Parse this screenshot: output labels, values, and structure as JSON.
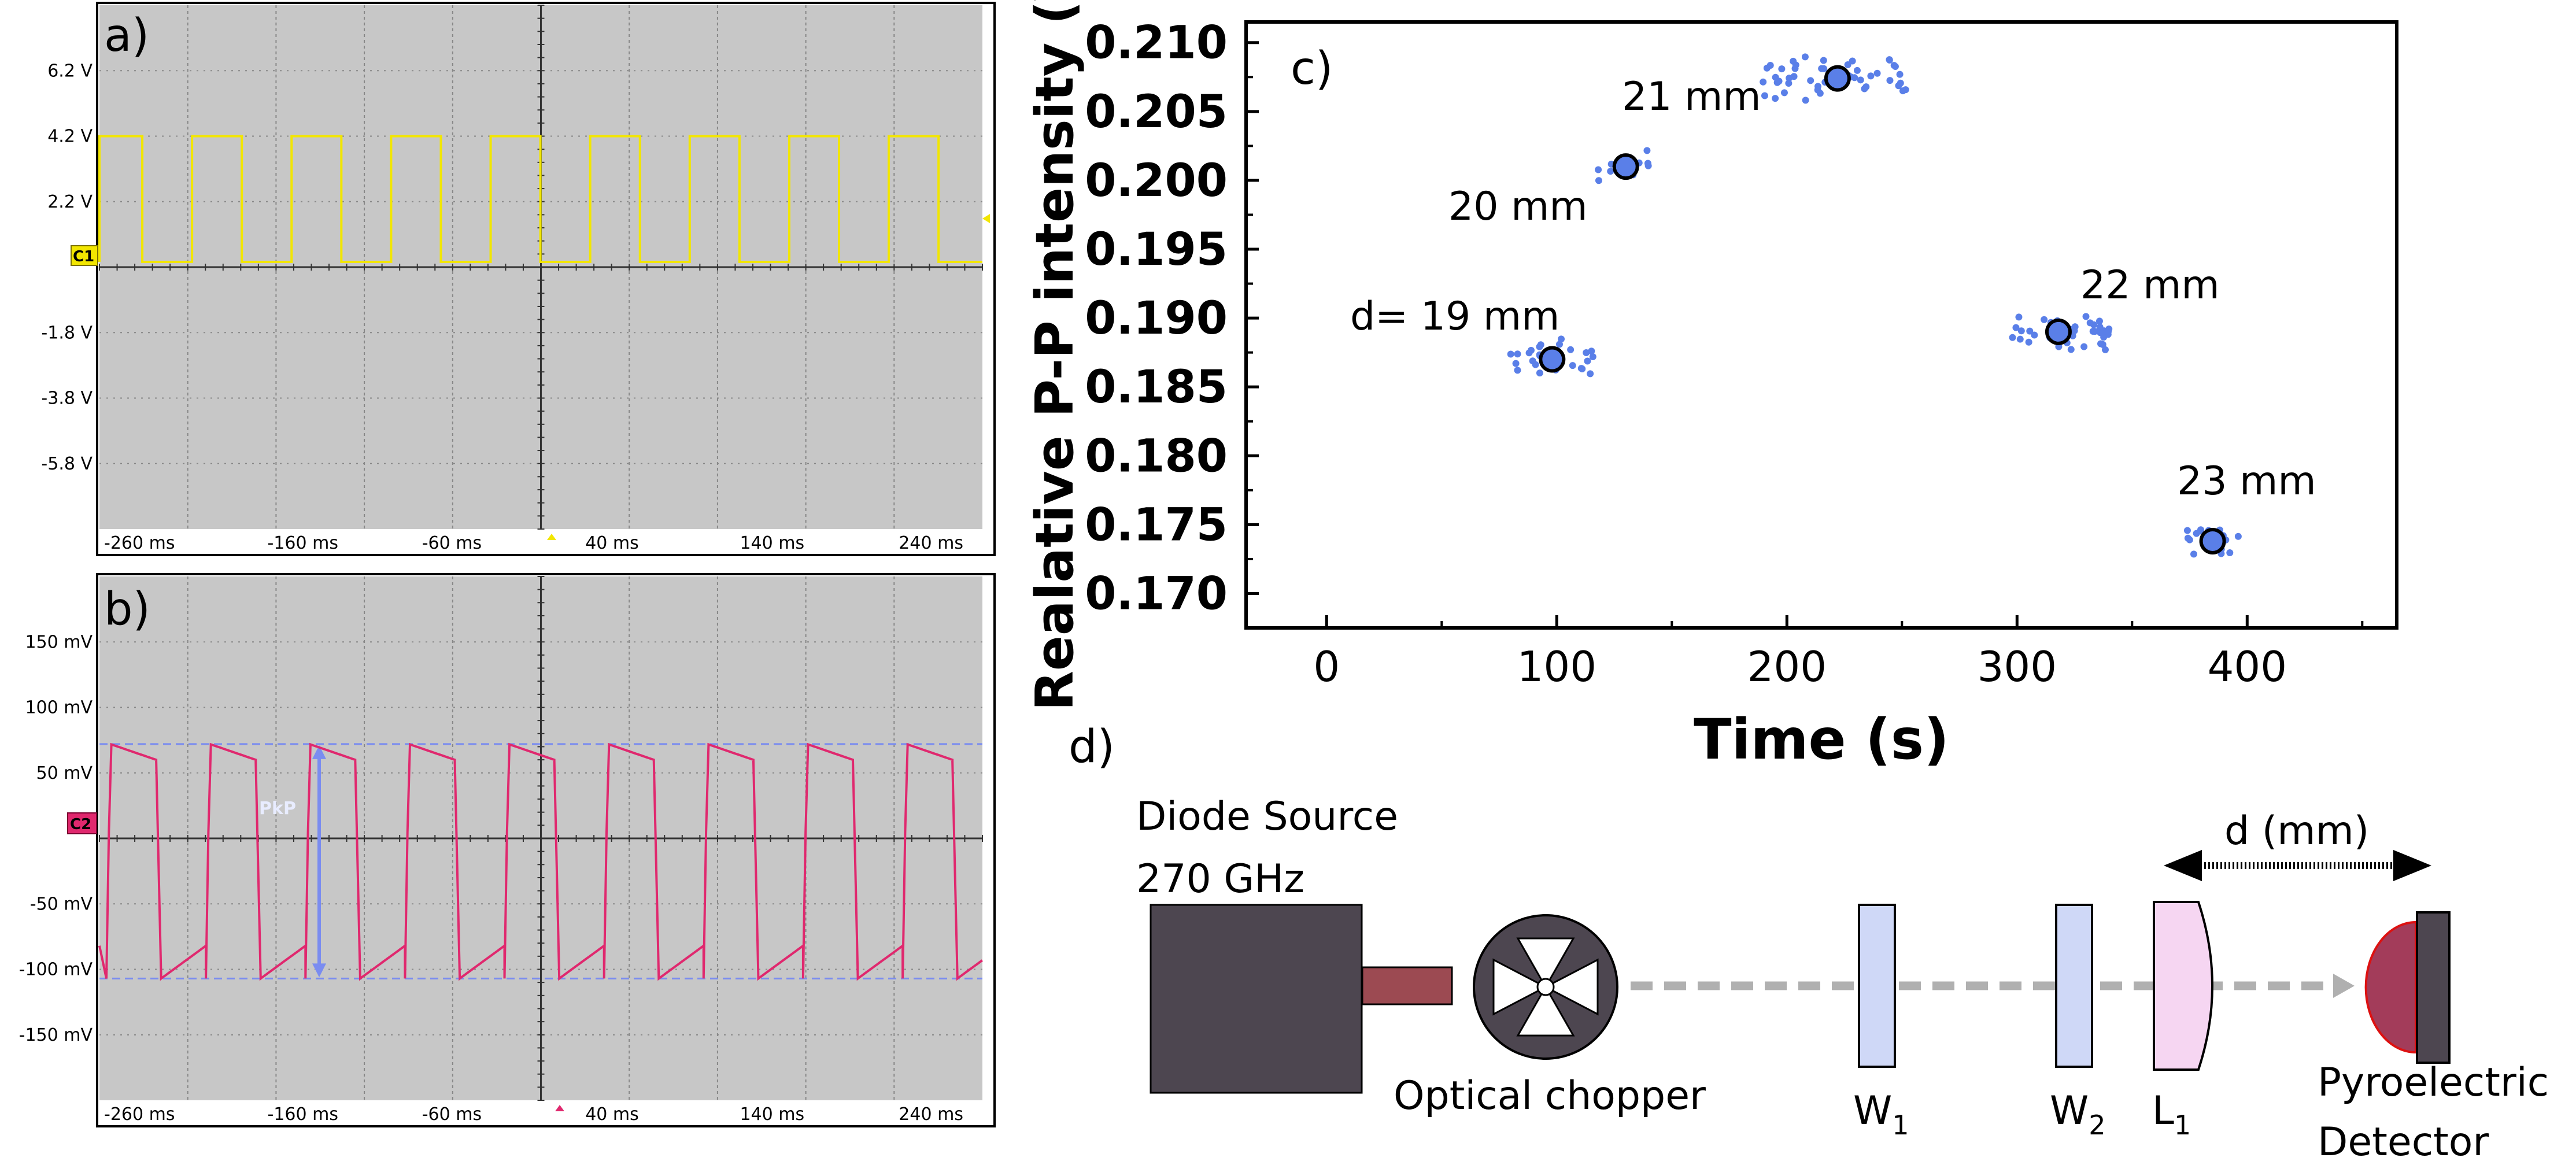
{
  "panels": {
    "a": {
      "label": "a)",
      "channel_marker": "C1",
      "y_ticks": [
        "6.2 V",
        "4.2 V",
        "2.2 V",
        "-1.8 V",
        "-3.8 V",
        "-5.8 V"
      ],
      "x_ticks": [
        "-260 ms",
        "-160 ms",
        "-60 ms",
        "40 ms",
        "140 ms",
        "240 ms"
      ],
      "trace_color": "#f2e600",
      "waveform": {
        "type": "square",
        "period_ms": 62,
        "high_v": 5.0,
        "low_v": 0.2
      }
    },
    "b": {
      "label": "b)",
      "channel_marker": "C2",
      "y_ticks": [
        "150 mV",
        "100 mV",
        "50 mV",
        "-50 mV",
        "-100 mV",
        "-150 mV"
      ],
      "x_ticks": [
        "-260 ms",
        "-160 ms",
        "-60 ms",
        "40 ms",
        "140 ms",
        "240 ms"
      ],
      "trace_color": "#e0286e",
      "measure_label": "PkP",
      "measure_color": "#7a8cf0",
      "waveform": {
        "type": "pyro",
        "period_ms": 62,
        "peak_mv": 72,
        "trough_mv": -107
      }
    }
  },
  "chart_data": {
    "type": "scatter",
    "panel_label": "c)",
    "xlabel": "Time (s)",
    "ylabel": "Realative P-P intensity (V)",
    "xlim": [
      -35,
      465
    ],
    "ylim": [
      0.1675,
      0.2115
    ],
    "x_ticks": [
      0,
      100,
      200,
      300,
      400
    ],
    "y_ticks": [
      0.17,
      0.175,
      0.18,
      0.185,
      0.19,
      0.195,
      0.2,
      0.205,
      0.21
    ],
    "point_color": "#5a7fe8",
    "mean_fill": "#5a7fe8",
    "groups": [
      {
        "name": "d= 19 mm",
        "mean": [
          98,
          0.187
        ],
        "spread_x": [
          80,
          118
        ],
        "spread_y": 0.0018,
        "count": 30
      },
      {
        "name": "20 mm",
        "mean": [
          130,
          0.201
        ],
        "spread_x": [
          118,
          142
        ],
        "spread_y": 0.0015,
        "count": 14
      },
      {
        "name": "21 mm",
        "mean": [
          222,
          0.2074
        ],
        "spread_x": [
          188,
          252
        ],
        "spread_y": 0.0016,
        "count": 50
      },
      {
        "name": "22 mm",
        "mean": [
          318,
          0.189
        ],
        "spread_x": [
          296,
          342
        ],
        "spread_y": 0.0015,
        "count": 40
      },
      {
        "name": "23 mm",
        "mean": [
          385,
          0.1738
        ],
        "spread_x": [
          374,
          397
        ],
        "spread_y": 0.0011,
        "count": 18
      }
    ]
  },
  "diagram": {
    "panel_label": "d)",
    "source_label_1": "Diode Source",
    "source_label_2": "270 GHz",
    "chopper_label": "Optical chopper",
    "w1_label": "W",
    "w1_sub": "1",
    "w2_label": "W",
    "w2_sub": "2",
    "l1_label": "L",
    "l1_sub": "1",
    "detector_label_1": "Pyroelectric",
    "detector_label_2": "Detector",
    "distance_label": "d (mm)",
    "colors": {
      "source": "#4d4650",
      "nozzle": "#9c4a52",
      "window": "#cfd8f7",
      "lens": "#f6d6f2",
      "detector_dome": "#a33c5a",
      "beam": "#b0b0b0"
    }
  }
}
